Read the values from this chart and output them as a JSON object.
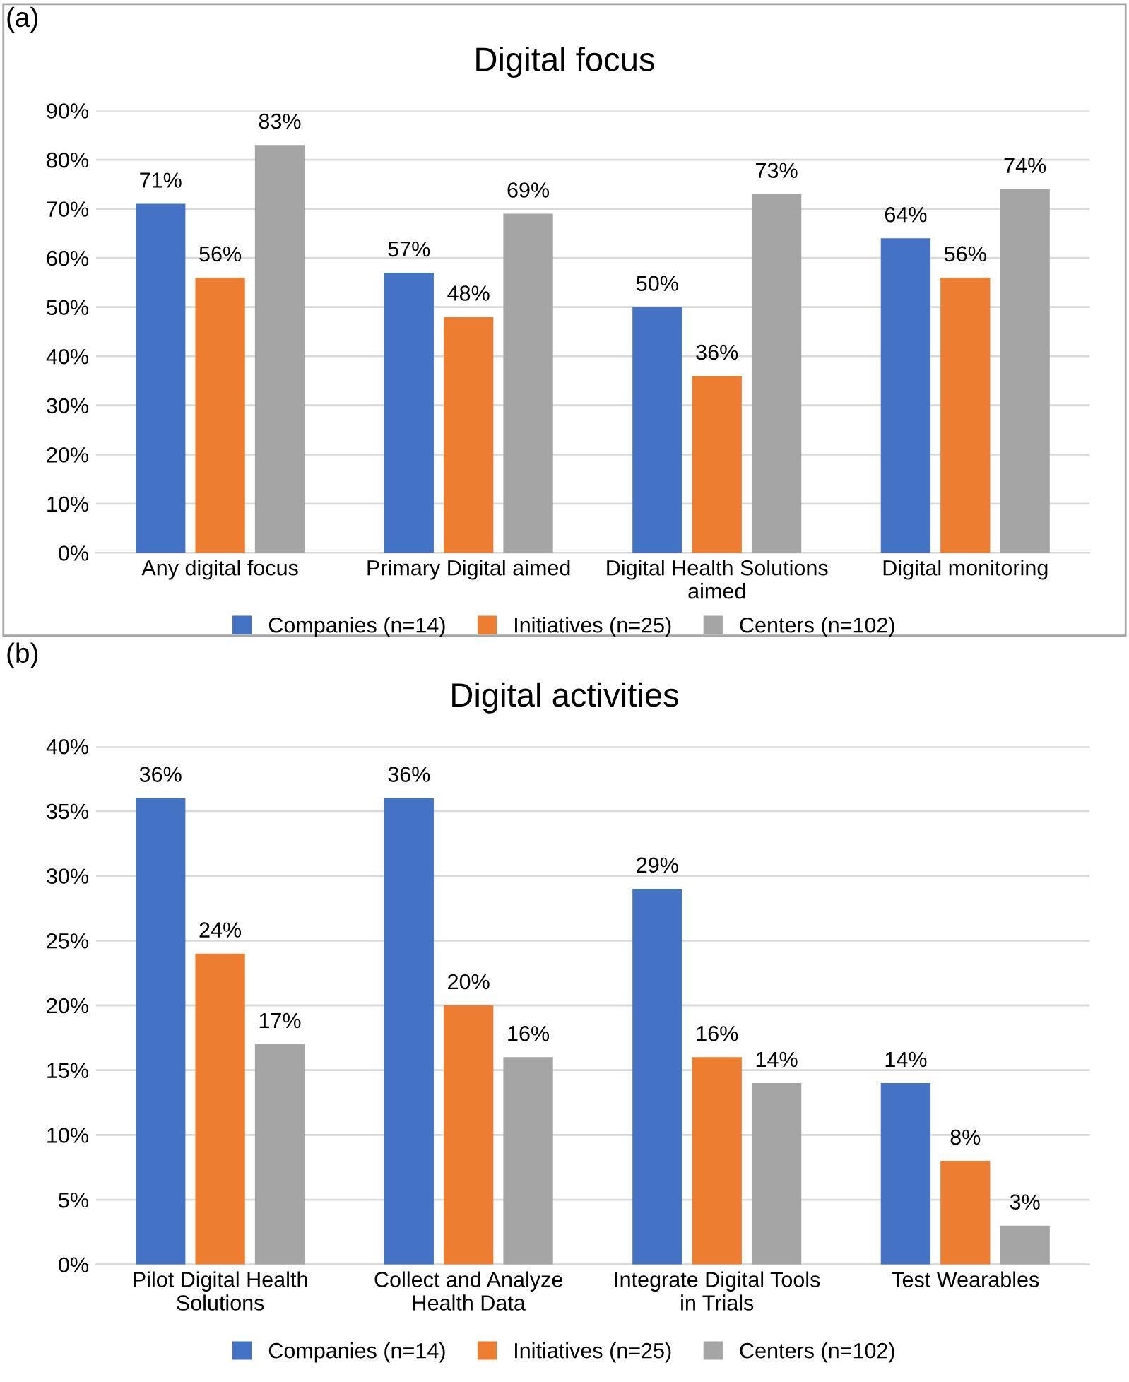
{
  "chart_data": [
    {
      "type": "bar",
      "title": "Digital focus",
      "annotations": [
        "(a)"
      ],
      "categories": [
        "Any digital focus",
        "Primary Digital aimed",
        "Digital Health Solutions aimed",
        "Digital monitoring"
      ],
      "series": [
        {
          "name": "Companies (n=14)",
          "color": "#4472c4",
          "values": [
            71,
            57,
            50,
            64
          ],
          "value_labels": [
            "71%",
            "57%",
            "50%",
            "64%"
          ]
        },
        {
          "name": "Initiatives (n=25)",
          "color": "#ed7d31",
          "values": [
            56,
            48,
            36,
            56
          ],
          "value_labels": [
            "56%",
            "48%",
            "36%",
            "56%"
          ]
        },
        {
          "name": "Centers (n=102)",
          "color": "#a5a5a5",
          "values": [
            83,
            69,
            73,
            74
          ],
          "value_labels": [
            "83%",
            "69%",
            "73%",
            "74%"
          ]
        }
      ],
      "ylim": [
        0,
        90
      ],
      "yticks": [
        {
          "value": 0,
          "label": "0%"
        },
        {
          "value": 10,
          "label": "10%"
        },
        {
          "value": 20,
          "label": "20%"
        },
        {
          "value": 30,
          "label": "30%"
        },
        {
          "value": 40,
          "label": "40%"
        },
        {
          "value": 50,
          "label": "50%"
        },
        {
          "value": 60,
          "label": "60%"
        },
        {
          "value": 70,
          "label": "70%"
        },
        {
          "value": 80,
          "label": "80%"
        },
        {
          "value": 90,
          "label": "90%"
        }
      ],
      "grid": "y",
      "legend": "bottom"
    },
    {
      "type": "bar",
      "title": "Digital activities",
      "annotations": [
        "(b)"
      ],
      "categories": [
        "Pilot Digital Health Solutions",
        "Collect and Analyze Health Data",
        "Integrate Digital Tools in Trials",
        "Test Wearables"
      ],
      "series": [
        {
          "name": "Companies (n=14)",
          "color": "#4472c4",
          "values": [
            36,
            36,
            29,
            14
          ],
          "value_labels": [
            "36%",
            "36%",
            "29%",
            "14%"
          ]
        },
        {
          "name": "Initiatives (n=25)",
          "color": "#ed7d31",
          "values": [
            24,
            20,
            16,
            8
          ],
          "value_labels": [
            "24%",
            "20%",
            "16%",
            "8%"
          ]
        },
        {
          "name": "Centers (n=102)",
          "color": "#a5a5a5",
          "values": [
            17,
            16,
            14,
            3
          ],
          "value_labels": [
            "17%",
            "16%",
            "14%",
            "3%"
          ]
        }
      ],
      "ylim": [
        0,
        40
      ],
      "yticks": [
        {
          "value": 0,
          "label": "0%"
        },
        {
          "value": 5,
          "label": "5%"
        },
        {
          "value": 10,
          "label": "10%"
        },
        {
          "value": 15,
          "label": "15%"
        },
        {
          "value": 20,
          "label": "20%"
        },
        {
          "value": 25,
          "label": "25%"
        },
        {
          "value": 30,
          "label": "30%"
        },
        {
          "value": 35,
          "label": "35%"
        },
        {
          "value": 40,
          "label": "40%"
        }
      ],
      "grid": "y",
      "legend": "bottom"
    }
  ]
}
